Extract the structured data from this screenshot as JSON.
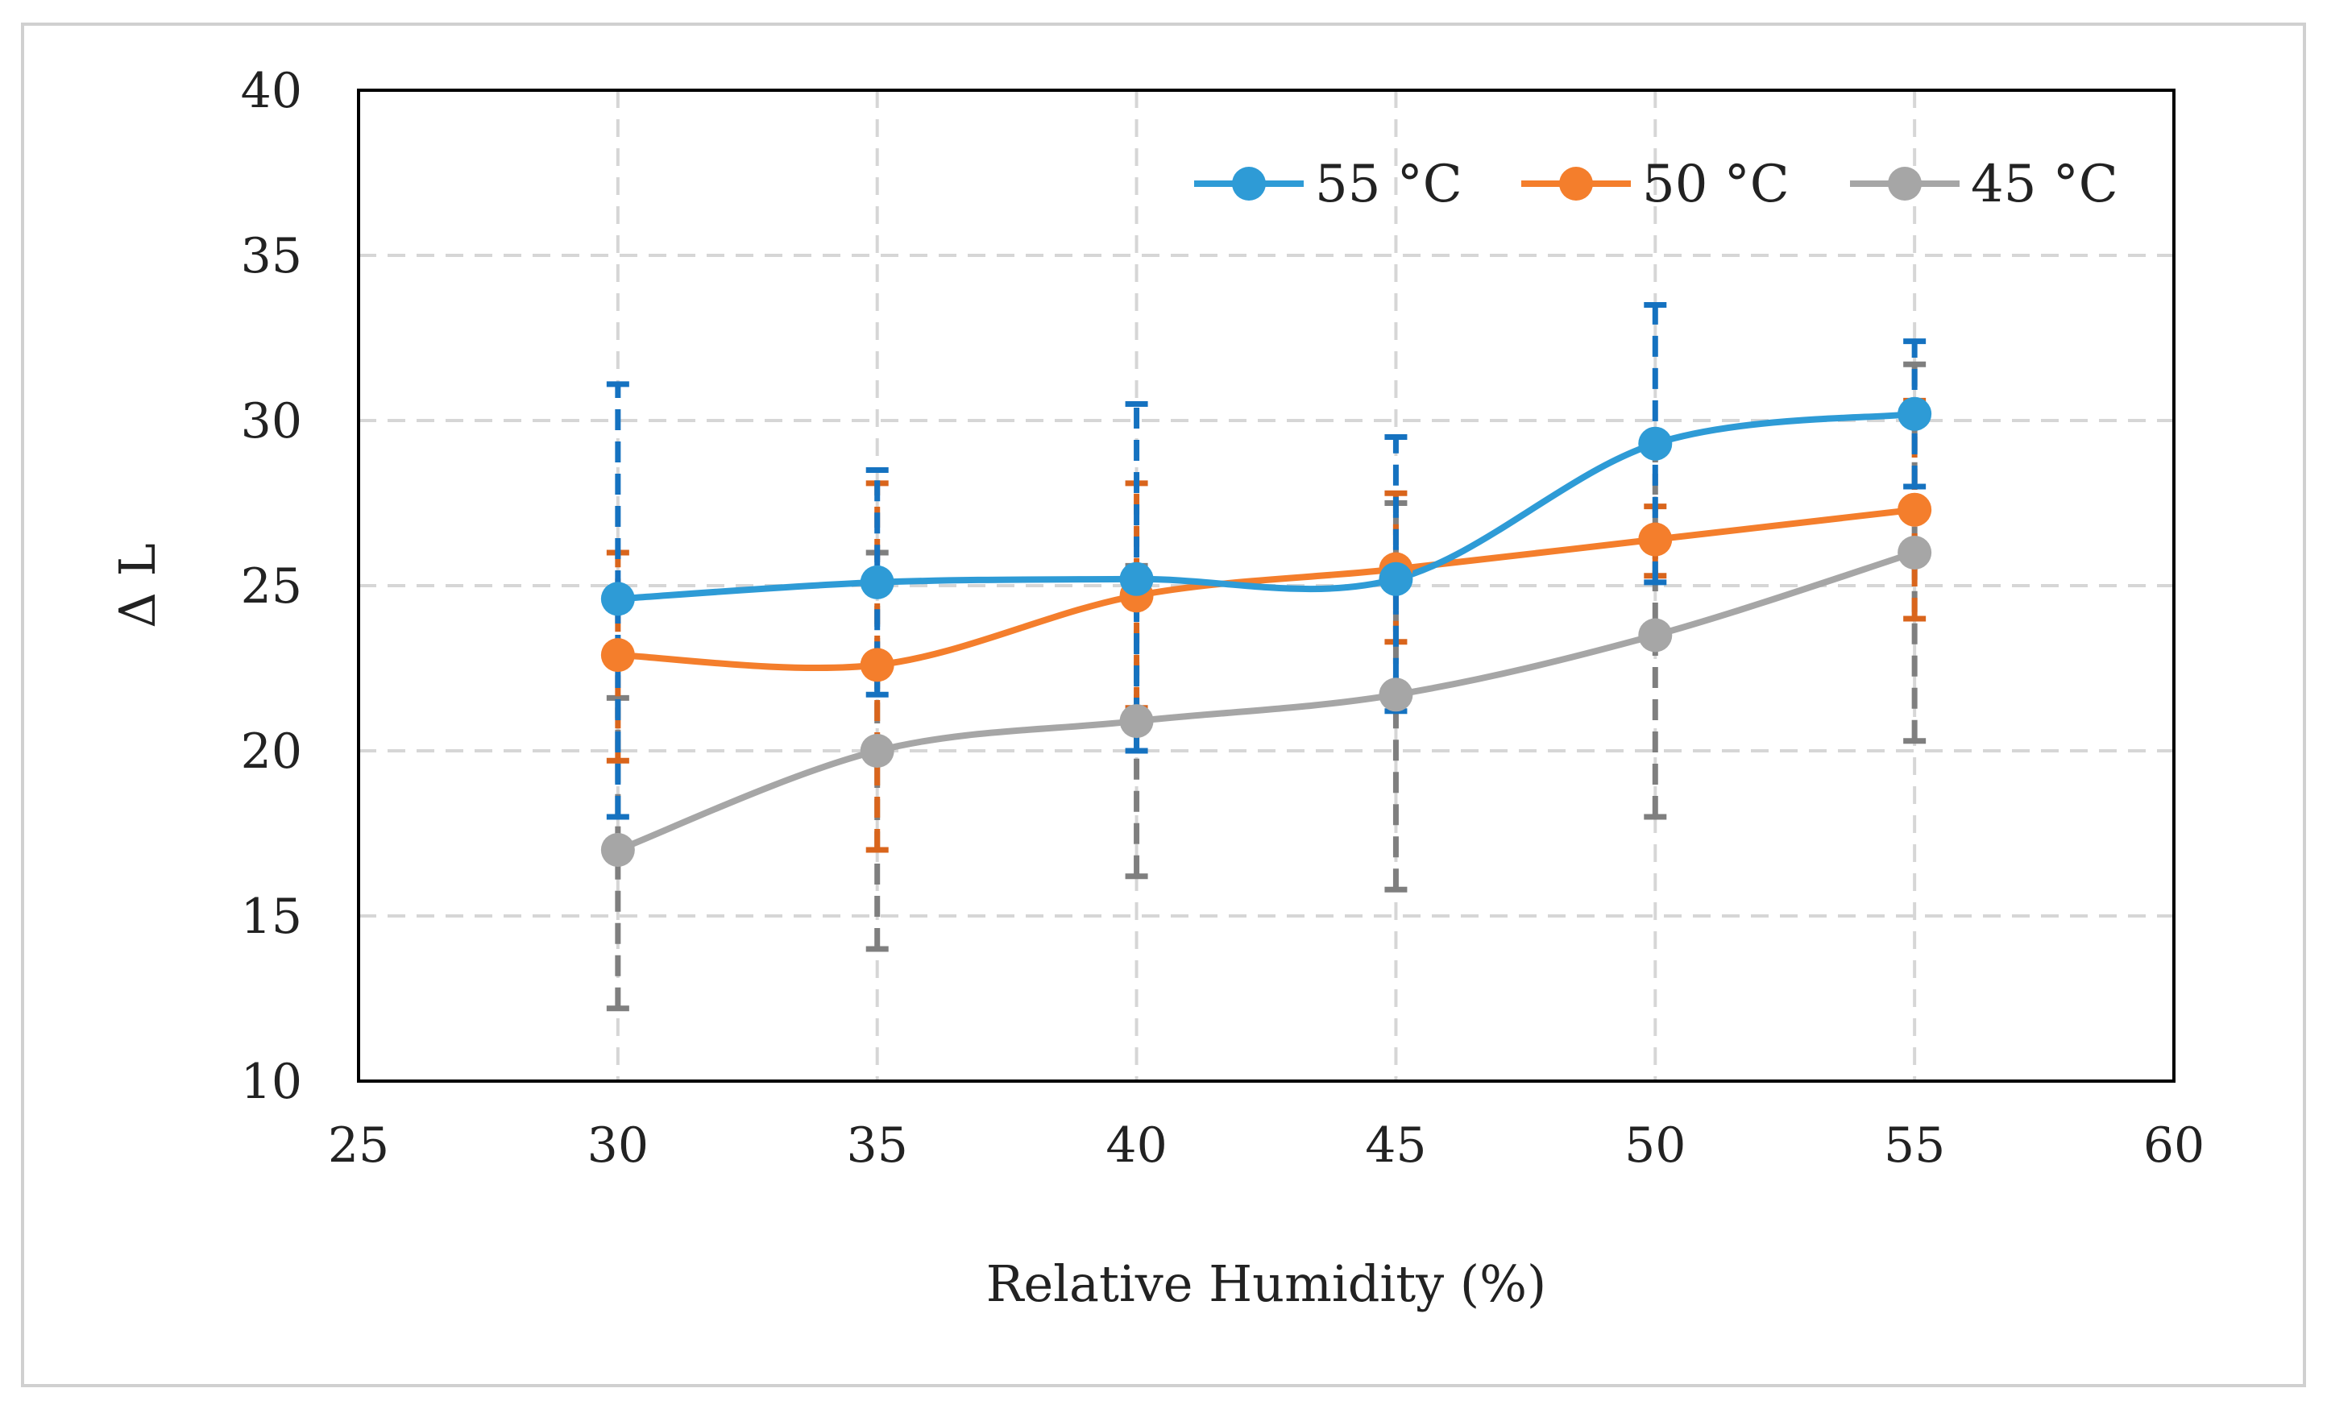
{
  "chart_data": {
    "type": "line",
    "xlabel": "Relative Humidity (%)",
    "ylabel": "Δ L",
    "xlim": [
      25,
      60
    ],
    "ylim": [
      10,
      40
    ],
    "xticks": [
      25,
      30,
      35,
      40,
      45,
      50,
      55,
      60
    ],
    "yticks": [
      10,
      15,
      20,
      25,
      30,
      35,
      40
    ],
    "grid": true,
    "legend_position": "top-right",
    "x": [
      30,
      35,
      40,
      45,
      50,
      55
    ],
    "series": [
      {
        "name": "55 °C",
        "color": "#2E9BD6",
        "error_color": "#1572C0",
        "values": [
          24.6,
          25.1,
          25.2,
          25.2,
          29.3,
          30.2
        ],
        "error_low": [
          18.0,
          21.7,
          20.0,
          21.2,
          25.1,
          28.0
        ],
        "error_high": [
          31.1,
          28.5,
          30.5,
          29.5,
          33.5,
          32.4
        ]
      },
      {
        "name": "50 °C",
        "color": "#F47E2C",
        "error_color": "#D9651C",
        "values": [
          22.9,
          22.6,
          24.7,
          25.5,
          26.4,
          27.3
        ],
        "error_low": [
          19.7,
          17.0,
          21.3,
          23.3,
          25.3,
          24.0
        ],
        "error_high": [
          26.0,
          28.1,
          28.1,
          27.8,
          27.4,
          30.6
        ]
      },
      {
        "name": "45 °C",
        "color": "#A6A6A6",
        "error_color": "#7F7F7F",
        "values": [
          17.0,
          20.0,
          20.9,
          21.7,
          23.5,
          26.0
        ],
        "error_low": [
          12.2,
          14.0,
          16.2,
          15.8,
          18.0,
          20.3
        ],
        "error_high": [
          21.6,
          26.0,
          25.6,
          27.5,
          29.0,
          31.7
        ]
      }
    ]
  }
}
